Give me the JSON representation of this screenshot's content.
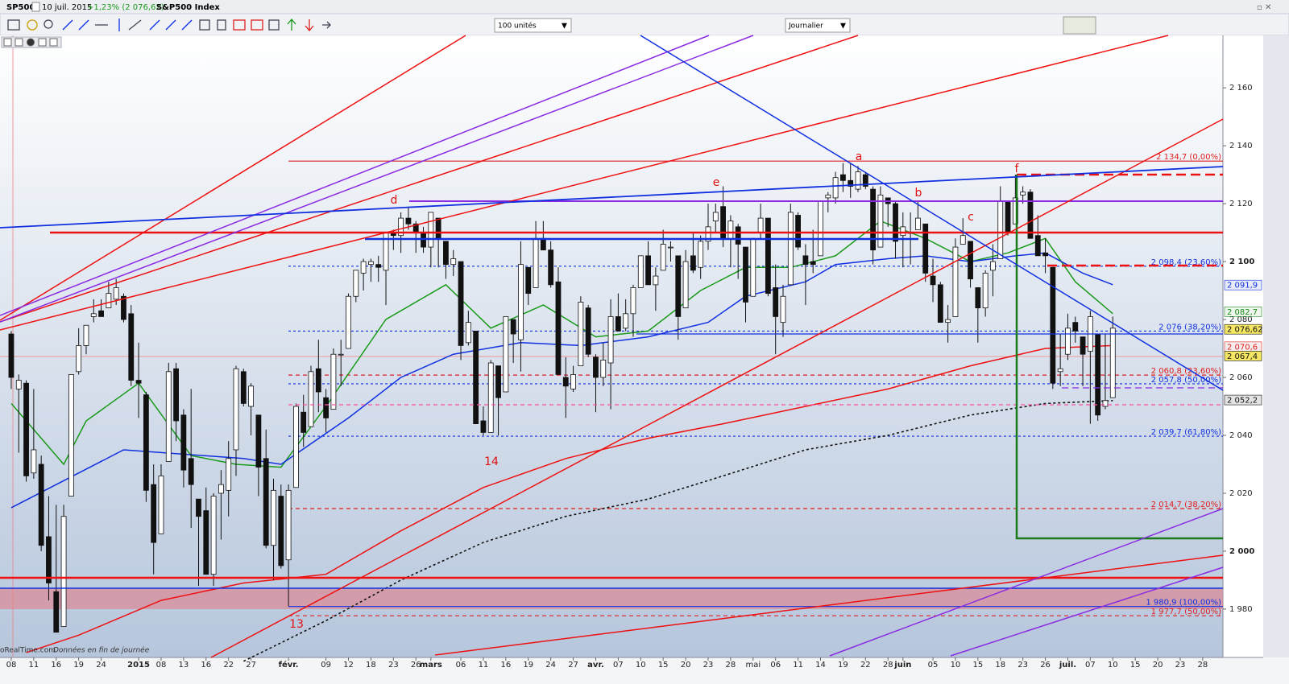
{
  "header": {
    "symbol": "SP500",
    "date": "10 juil. 2015",
    "change": "+1,23% (2 076,62)",
    "name": "S&P500 Index"
  },
  "toolbar": {
    "quantity": "100 unités",
    "period": "Journalier"
  },
  "footer": {
    "source": "oRealTime.com",
    "note": "Données en fin de journée"
  },
  "chart_data": {
    "type": "candlestick",
    "xlim": [
      -1.5,
      161.7
    ],
    "ylim": [
      1963.3,
      2178.1
    ],
    "yticks": [
      {
        "value": 2160,
        "label": "2 160"
      },
      {
        "value": 2140,
        "label": "2 140"
      },
      {
        "value": 2120,
        "label": "2 120"
      },
      {
        "value": 2100,
        "label": "2 100"
      },
      {
        "value": 2080,
        "label": "2 080"
      },
      {
        "value": 2060,
        "label": "2 060"
      },
      {
        "value": 2040,
        "label": "2 040"
      },
      {
        "value": 2020,
        "label": "2 020"
      },
      {
        "value": 2000,
        "label": "2 000"
      },
      {
        "value": 1980,
        "label": "1 980"
      }
    ],
    "xticks": [
      {
        "value": 0,
        "label": "08"
      },
      {
        "value": 3,
        "label": "11"
      },
      {
        "value": 6,
        "label": "16"
      },
      {
        "value": 9,
        "label": "19"
      },
      {
        "value": 12,
        "label": "24"
      },
      {
        "value": 17,
        "label": "2015"
      },
      {
        "value": 20,
        "label": "08"
      },
      {
        "value": 23,
        "label": "13"
      },
      {
        "value": 26,
        "label": "16"
      },
      {
        "value": 29,
        "label": "22"
      },
      {
        "value": 32,
        "label": "27"
      },
      {
        "value": 37,
        "label": "févr."
      },
      {
        "value": 42,
        "label": "09"
      },
      {
        "value": 45,
        "label": "12"
      },
      {
        "value": 48,
        "label": "18"
      },
      {
        "value": 51,
        "label": "23"
      },
      {
        "value": 54,
        "label": "26"
      },
      {
        "value": 56,
        "label": "mars"
      },
      {
        "value": 60,
        "label": "06"
      },
      {
        "value": 63,
        "label": "11"
      },
      {
        "value": 66,
        "label": "16"
      },
      {
        "value": 69,
        "label": "19"
      },
      {
        "value": 72,
        "label": "24"
      },
      {
        "value": 75,
        "label": "27"
      },
      {
        "value": 78,
        "label": "avr."
      },
      {
        "value": 81,
        "label": "07"
      },
      {
        "value": 84,
        "label": "10"
      },
      {
        "value": 87,
        "label": "15"
      },
      {
        "value": 90,
        "label": "20"
      },
      {
        "value": 93,
        "label": "23"
      },
      {
        "value": 96,
        "label": "28"
      },
      {
        "value": 99,
        "label": "mai"
      },
      {
        "value": 102,
        "label": "06"
      },
      {
        "value": 105,
        "label": "11"
      },
      {
        "value": 108,
        "label": "14"
      },
      {
        "value": 111,
        "label": "19"
      },
      {
        "value": 114,
        "label": "22"
      },
      {
        "value": 117,
        "label": "28"
      },
      {
        "value": 119,
        "label": "juin"
      },
      {
        "value": 123,
        "label": "05"
      },
      {
        "value": 126,
        "label": "10"
      },
      {
        "value": 129,
        "label": "15"
      },
      {
        "value": 132,
        "label": "18"
      },
      {
        "value": 135,
        "label": "23"
      },
      {
        "value": 138,
        "label": "26"
      },
      {
        "value": 141,
        "label": "juil."
      },
      {
        "value": 144,
        "label": "07"
      },
      {
        "value": 147,
        "label": "10"
      },
      {
        "value": 150,
        "label": "15"
      },
      {
        "value": 153,
        "label": "20"
      },
      {
        "value": 156,
        "label": "23"
      },
      {
        "value": 159,
        "label": "28"
      }
    ],
    "up_color": "#ffffff",
    "down_color": "#111111",
    "ohlc": [
      [
        2075,
        2076,
        2056,
        2060
      ],
      [
        2056,
        2061,
        2034,
        2059
      ],
      [
        2058,
        2059,
        2024,
        2026
      ],
      [
        2027,
        2056,
        2025,
        2035
      ],
      [
        2030,
        2033,
        2000,
        2002
      ],
      [
        2005,
        2019,
        1983,
        1989
      ],
      [
        1986,
        2016,
        1972,
        1972
      ],
      [
        1974,
        2016,
        1974,
        2012
      ],
      [
        2019,
        2061,
        2019,
        2061
      ],
      [
        2062,
        2077,
        2061,
        2071
      ],
      [
        2071,
        2078,
        2068,
        2078
      ],
      [
        2081,
        2087,
        2079,
        2082
      ],
      [
        2083,
        2087,
        2081,
        2081
      ],
      [
        2084,
        2093,
        2084,
        2089
      ],
      [
        2087,
        2094,
        2085,
        2091
      ],
      [
        2088,
        2089,
        2079,
        2080
      ],
      [
        2082,
        2085,
        2057,
        2059
      ],
      [
        2059,
        2072,
        2046,
        2058
      ],
      [
        2054,
        2055,
        2017,
        2021
      ],
      [
        2023,
        2030,
        1992,
        2003
      ],
      [
        2006,
        2030,
        2006,
        2026
      ],
      [
        2031,
        2065,
        2031,
        2062
      ],
      [
        2063,
        2065,
        2038,
        2045
      ],
      [
        2047,
        2049,
        2022,
        2028
      ],
      [
        2032,
        2056,
        2008,
        2023
      ],
      [
        2018,
        2018,
        1988,
        2012
      ],
      [
        2014,
        2022,
        1992,
        1992
      ],
      [
        1992,
        2020,
        1988,
        2019
      ],
      [
        2020,
        2028,
        2004,
        2023
      ],
      [
        2021,
        2038,
        2012,
        2032
      ],
      [
        2035,
        2064,
        2026,
        2063
      ],
      [
        2062,
        2063,
        2050,
        2051
      ],
      [
        2050,
        2058,
        2040,
        2057
      ],
      [
        2047,
        2047,
        2019,
        2029
      ],
      [
        2032,
        2042,
        2001,
        2002
      ],
      [
        2002,
        2025,
        1990,
        2021
      ],
      [
        2019,
        2023,
        1994,
        1995
      ],
      [
        1997,
        2023,
        1981,
        2021
      ],
      [
        2022,
        2051,
        2022,
        2050
      ],
      [
        2048,
        2054,
        2036,
        2041
      ],
      [
        2043,
        2064,
        2043,
        2062
      ],
      [
        2063,
        2073,
        2048,
        2055
      ],
      [
        2053,
        2056,
        2041,
        2046
      ],
      [
        2049,
        2070,
        2049,
        2068
      ],
      [
        2068,
        2073,
        2057,
        2068
      ],
      [
        2070,
        2089,
        2070,
        2088
      ],
      [
        2088,
        2097,
        2086,
        2097
      ],
      [
        2096,
        2101,
        2090,
        2100
      ],
      [
        2099,
        2101,
        2093,
        2100
      ],
      [
        2099,
        2102,
        2093,
        2098
      ],
      [
        2097,
        2110,
        2085,
        2110
      ],
      [
        2110,
        2111,
        2104,
        2109
      ],
      [
        2109,
        2117,
        2103,
        2115
      ],
      [
        2115,
        2119,
        2111,
        2113
      ],
      [
        2113,
        2114,
        2103,
        2110
      ],
      [
        2110,
        2112,
        2103,
        2105
      ],
      [
        2105,
        2117,
        2098,
        2117
      ],
      [
        2115,
        2115,
        2098,
        2108
      ],
      [
        2107,
        2107,
        2094,
        2099
      ],
      [
        2099,
        2104,
        2095,
        2101
      ],
      [
        2100,
        2100,
        2066,
        2071
      ],
      [
        2072,
        2083,
        2071,
        2079
      ],
      [
        2076,
        2076,
        2044,
        2044
      ],
      [
        2045,
        2050,
        2040,
        2041
      ],
      [
        2041,
        2066,
        2041,
        2065
      ],
      [
        2064,
        2064,
        2040,
        2053
      ],
      [
        2055,
        2081,
        2055,
        2081
      ],
      [
        2080,
        2080,
        2065,
        2075
      ],
      [
        2073,
        2107,
        2062,
        2099
      ],
      [
        2098,
        2098,
        2085,
        2089
      ],
      [
        2091,
        2114,
        2091,
        2108
      ],
      [
        2108,
        2114,
        2104,
        2104
      ],
      [
        2104,
        2107,
        2091,
        2092
      ],
      [
        2093,
        2098,
        2061,
        2061
      ],
      [
        2060,
        2067,
        2046,
        2057
      ],
      [
        2056,
        2064,
        2055,
        2061
      ],
      [
        2064,
        2088,
        2064,
        2086
      ],
      [
        2084,
        2085,
        2067,
        2068
      ],
      [
        2067,
        2068,
        2048,
        2060
      ],
      [
        2060,
        2072,
        2057,
        2066
      ],
      [
        2065,
        2087,
        2049,
        2081
      ],
      [
        2081,
        2089,
        2076,
        2076
      ],
      [
        2077,
        2087,
        2076,
        2082
      ],
      [
        2082,
        2092,
        2074,
        2091
      ],
      [
        2091,
        2102,
        2091,
        2102
      ],
      [
        2102,
        2107,
        2092,
        2092
      ],
      [
        2092,
        2098,
        2083,
        2095
      ],
      [
        2097,
        2111,
        2097,
        2106
      ],
      [
        2105,
        2107,
        2100,
        2105
      ],
      [
        2102,
        2102,
        2073,
        2081
      ],
      [
        2084,
        2104,
        2084,
        2100
      ],
      [
        2102,
        2110,
        2096,
        2097
      ],
      [
        2098,
        2109,
        2094,
        2107
      ],
      [
        2107,
        2120,
        2104,
        2112
      ],
      [
        2114,
        2120,
        2110,
        2117
      ],
      [
        2119,
        2126,
        2105,
        2108
      ],
      [
        2108,
        2116,
        2098,
        2114
      ],
      [
        2112,
        2113,
        2094,
        2106
      ],
      [
        2105,
        2105,
        2079,
        2086
      ],
      [
        2088,
        2108,
        2088,
        2108
      ],
      [
        2110,
        2120,
        2108,
        2115
      ],
      [
        2115,
        2115,
        2088,
        2089
      ],
      [
        2091,
        2099,
        2068,
        2081
      ],
      [
        2079,
        2092,
        2074,
        2088
      ],
      [
        2092,
        2120,
        2092,
        2117
      ],
      [
        2116,
        2117,
        2104,
        2105
      ],
      [
        2102,
        2106,
        2085,
        2099
      ],
      [
        2100,
        2111,
        2096,
        2099
      ],
      [
        2102,
        2121,
        2102,
        2121
      ],
      [
        2122,
        2124,
        2117,
        2123
      ],
      [
        2122,
        2131,
        2120,
        2129
      ],
      [
        2130,
        2134,
        2124,
        2128
      ],
      [
        2128,
        2134,
        2122,
        2126
      ],
      [
        2125,
        2133,
        2124,
        2131
      ],
      [
        2130,
        2131,
        2125,
        2126
      ],
      [
        2125,
        2126,
        2099,
        2104
      ],
      [
        2105,
        2126,
        2105,
        2123
      ],
      [
        2122,
        2122,
        2112,
        2120
      ],
      [
        2120,
        2121,
        2101,
        2107
      ],
      [
        2109,
        2117,
        2098,
        2112
      ],
      [
        2110,
        2117,
        2099,
        2110
      ],
      [
        2111,
        2121,
        2111,
        2115
      ],
      [
        2113,
        2113,
        2093,
        2096
      ],
      [
        2095,
        2101,
        2086,
        2092
      ],
      [
        2092,
        2093,
        2079,
        2079
      ],
      [
        2079,
        2085,
        2072,
        2080
      ],
      [
        2081,
        2108,
        2081,
        2105
      ],
      [
        2106,
        2115,
        2106,
        2109
      ],
      [
        2107,
        2107,
        2091,
        2094
      ],
      [
        2091,
        2091,
        2072,
        2084
      ],
      [
        2084,
        2097,
        2081,
        2096
      ],
      [
        2097,
        2106,
        2088,
        2100
      ],
      [
        2101,
        2126,
        2101,
        2121
      ],
      [
        2121,
        2121,
        2109,
        2110
      ],
      [
        2113,
        2130,
        2113,
        2122
      ],
      [
        2123,
        2126,
        2120,
        2124
      ],
      [
        2124,
        2125,
        2108,
        2108
      ],
      [
        2109,
        2116,
        2102,
        2102
      ],
      [
        2103,
        2108,
        2096,
        2102
      ],
      [
        2098,
        2098,
        2056,
        2058
      ],
      [
        2062,
        2075,
        2057,
        2063
      ],
      [
        2068,
        2082,
        2066,
        2077
      ],
      [
        2079,
        2081,
        2072,
        2076
      ],
      [
        2074,
        2074,
        2057,
        2068
      ],
      [
        2069,
        2083,
        2044,
        2081
      ],
      [
        2075,
        2075,
        2045,
        2047
      ],
      [
        2050,
        2075,
        2049,
        2052
      ],
      [
        2053,
        2081,
        2053,
        2077
      ]
    ],
    "series": [
      {
        "color": "#1a9a1a",
        "style": "solid",
        "x": [
          0,
          7,
          10,
          17,
          24,
          30,
          36,
          42,
          50,
          58,
          64,
          71,
          78,
          85,
          92,
          98,
          104,
          110,
          116,
          122,
          128,
          133,
          138,
          142,
          147
        ],
        "values": [
          2051,
          2030,
          2045,
          2058,
          2033,
          2030,
          2029,
          2050,
          2080,
          2092,
          2077,
          2085,
          2074,
          2076,
          2090,
          2098,
          2098,
          2102,
          2114,
          2108,
          2100,
          2103,
          2108,
          2093,
          2082
        ]
      },
      {
        "color": "#1030e0",
        "style": "solid",
        "x": [
          0,
          15,
          31,
          36,
          45,
          52,
          59,
          68,
          76,
          85,
          93,
          98,
          106,
          110,
          117,
          122,
          128,
          134,
          138,
          143,
          147
        ],
        "values": [
          2015,
          2035,
          2032,
          2030,
          2046,
          2060,
          2068,
          2072,
          2071,
          2074,
          2079,
          2088,
          2093,
          2099,
          2101,
          2102,
          2100,
          2102,
          2103,
          2096,
          2092
        ]
      },
      {
        "color": "#ee1111",
        "style": "solid",
        "x": [
          2,
          9,
          20,
          31,
          42,
          52,
          63,
          74,
          85,
          95,
          106,
          117,
          128,
          138,
          147
        ],
        "values": [
          1965,
          1971,
          1983,
          1989,
          1992,
          2007,
          2022,
          2032,
          2039,
          2044,
          2050,
          2056,
          2064,
          2070,
          2071
        ]
      },
      {
        "color": "#111111",
        "style": "dotted",
        "x": [
          31,
          42,
          52,
          63,
          74,
          85,
          95,
          106,
          117,
          128,
          138,
          147
        ],
        "values": [
          1962,
          1976,
          1990,
          2003,
          2012,
          2018,
          2026,
          2035,
          2040,
          2047,
          2051,
          2052
        ]
      }
    ],
    "levels": [
      {
        "value": 2134.7,
        "label": "2 134,7 (0,00%)",
        "color": "#e02020",
        "style": "solid"
      },
      {
        "value": 2098.4,
        "label": "2 098,4 (23,60%)",
        "color": "#1030e0",
        "style": "dotted"
      },
      {
        "value": 2076,
        "label": "2 076 (38,20%)",
        "color": "#1030e0",
        "style": "dotted"
      },
      {
        "value": 2060.8,
        "label": "2 060,8 (23,60%)",
        "color": "#e02020",
        "style": "dashed"
      },
      {
        "value": 2057.8,
        "label": "2 057,8 (50,00%)",
        "color": "#1030e0",
        "style": "dotted"
      },
      {
        "value": 2039.7,
        "label": "2 039,7 (61,80%)",
        "color": "#1030e0",
        "style": "dotted"
      },
      {
        "value": 2014.7,
        "label": "2 014,7 (38,20%)",
        "color": "#e02020",
        "style": "dashed"
      },
      {
        "value": 1980.9,
        "label": "1 980,9 (100,00%)",
        "color": "#1030e0",
        "style": "solid"
      },
      {
        "value": 1977.7,
        "label": "1 977,7 (50,00%)",
        "color": "#e02020",
        "style": "dashed"
      }
    ],
    "price_tags": [
      {
        "value": 2091.9,
        "label": "2 091,9",
        "color": "#1030e0",
        "background": "#e8ecf8"
      },
      {
        "value": 2082.7,
        "label": "2 082,7",
        "color": "#1a8a1a",
        "background": "#eef6ee"
      },
      {
        "value": 2076.62,
        "label": "2 076,62",
        "color": "#111111",
        "background": "#f5e663"
      },
      {
        "value": 2070.6,
        "label": "2 070,6",
        "color": "#e02020",
        "background": "#f6eeee"
      },
      {
        "value": 2067.4,
        "label": "2 067,4",
        "color": "#111111",
        "background": "#f5e663"
      },
      {
        "value": 2052.2,
        "label": "2 052,2",
        "color": "#111111",
        "background": "#e4e4e4"
      }
    ],
    "annotations": [
      "a",
      "b",
      "c",
      "d",
      "e",
      "f",
      "13",
      "14"
    ]
  }
}
